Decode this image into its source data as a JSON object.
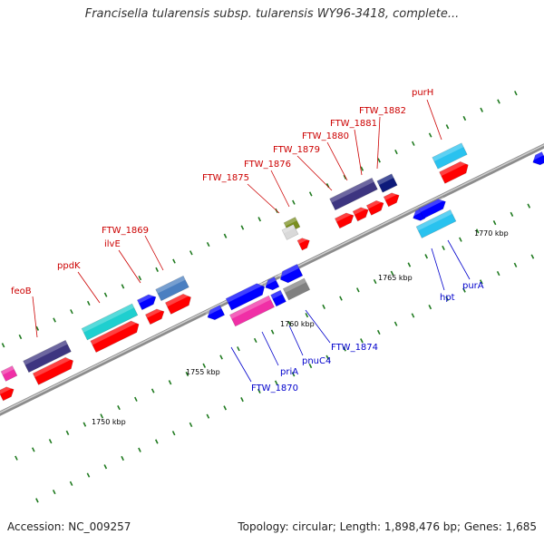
{
  "title": "Francisella tularensis subsp. tularensis WY96-3418, complete...",
  "footer": {
    "accession": "Accession: NC_009257",
    "summary": "Topology: circular; Length: 1,898,476 bp; Genes: 1,685"
  },
  "scale_labels": [
    "1750 kbp",
    "1755 kbp",
    "1760 kbp",
    "1765 kbp",
    "1770 kbp"
  ],
  "gene_labels_top": [
    "feoB",
    "ppdK",
    "ilvE",
    "FTW_1869",
    "FTW_1875",
    "FTW_1876",
    "FTW_1879",
    "FTW_1880",
    "FTW_1881",
    "FTW_1882",
    "purH"
  ],
  "gene_labels_bottom": [
    "FTW_1870",
    "priA",
    "pnuC4",
    "FTW_1874",
    "hpt",
    "purA"
  ],
  "colors": {
    "label_top": "#cc0000",
    "label_bottom": "#0000cc",
    "cds": "#ff0000",
    "gene_forward": "#0000ff",
    "dark_purple": "#3d3580",
    "teal": "#1fcfcf",
    "light_blue": "#29c2ef",
    "steel_blue": "#4a7fc1",
    "magenta": "#f02fa6",
    "gray": "#808080",
    "olive": "#7a8f1f",
    "navy": "#0d1a7a",
    "tick": "#1f7a1f",
    "backbone": "#9a9a9a"
  }
}
